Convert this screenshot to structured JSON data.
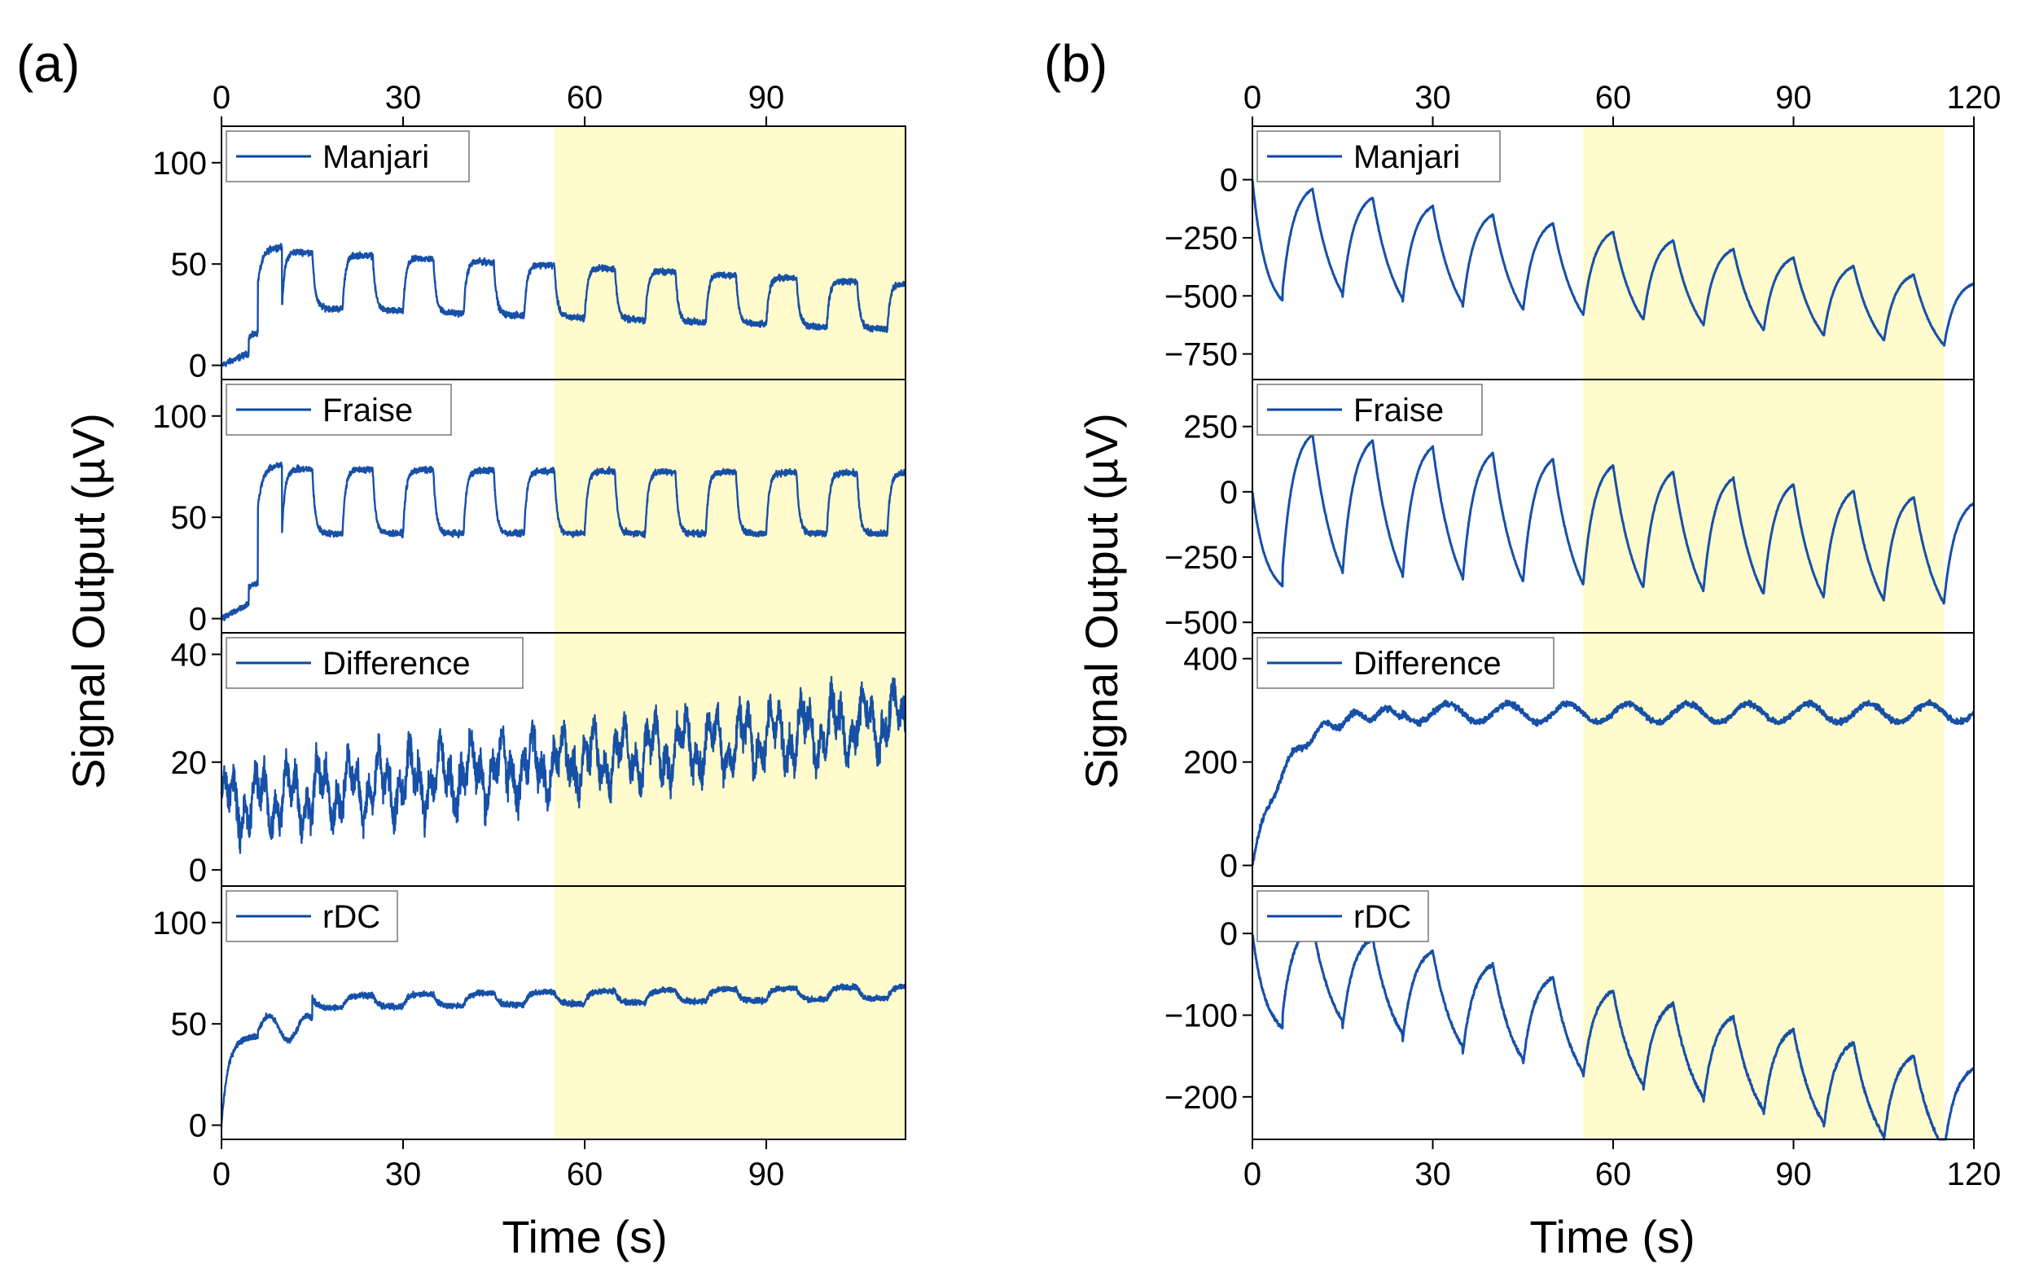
{
  "figure_meta": {
    "line_color": "#0a47a3",
    "shade_color": "#fffbcc"
  },
  "chart_data": [
    {
      "type": "line",
      "panel_label": "(a)",
      "xlabel": "Time (s)",
      "ylabel": "Signal Output (µV)",
      "xlim": [
        0,
        113
      ],
      "xticks": [
        0,
        30,
        60,
        90
      ],
      "top_axis_ticks": [
        0,
        30,
        60,
        90
      ],
      "shaded_region": [
        55,
        113
      ],
      "subplots": [
        {
          "name": "Manjari",
          "ylim": [
            -7,
            118
          ],
          "yticks": [
            0,
            50,
            100
          ],
          "model": {
            "kind": "step",
            "noise": 2.2,
            "base": 30,
            "amp": 28,
            "fall": -0.11,
            "amp_fall": -0.05,
            "onset": 6,
            "onset_from": 8
          }
        },
        {
          "name": "Fraise",
          "ylim": [
            -7,
            118
          ],
          "yticks": [
            0,
            50,
            100
          ],
          "model": {
            "kind": "step",
            "noise": 2.2,
            "base": 42,
            "amp": 32,
            "fall": 0.0,
            "amp_fall": -0.02,
            "onset": 6,
            "onset_from": 10
          }
        },
        {
          "name": "Difference",
          "ylim": [
            -3,
            44
          ],
          "yticks": [
            0,
            20,
            40
          ],
          "model": {
            "kind": "diff",
            "noise": 4.5,
            "base": 12,
            "amp": 4,
            "fall": 0.14,
            "amp_fall": 0
          }
        },
        {
          "name": "rDC",
          "ylim": [
            -7,
            118
          ],
          "yticks": [
            0,
            50,
            100
          ],
          "model": {
            "kind": "rdc",
            "noise": 2.0,
            "base": 57,
            "amp": 6,
            "fall": 0.05,
            "amp_fall": -0.02
          }
        }
      ]
    },
    {
      "type": "line",
      "panel_label": "(b)",
      "xlabel": "Time (s)",
      "ylabel": "Signal Output (µV)",
      "xlim": [
        0,
        120
      ],
      "xticks": [
        0,
        30,
        60,
        90,
        120
      ],
      "top_axis_ticks": [
        0,
        30,
        60,
        90,
        120
      ],
      "shaded_region": [
        55,
        115
      ],
      "subplots": [
        {
          "name": "Manjari",
          "ylim": [
            -860,
            230
          ],
          "yticks": [
            0,
            -250,
            -500,
            -750
          ],
          "model": {
            "kind": "saw",
            "noise": 4,
            "lead": [
              0,
              -520
            ],
            "hi0": -40,
            "hi_slope": -3.7,
            "lo0": -480,
            "lo_slope": -2.2,
            "tau": 4
          }
        },
        {
          "name": "Fraise",
          "ylim": [
            -540,
            430
          ],
          "yticks": [
            250,
            0,
            -250,
            -500
          ],
          "model": {
            "kind": "saw",
            "noise": 4,
            "lead": [
              0,
              -360
            ],
            "hi0": 220,
            "hi_slope": -2.4,
            "lo0": -300,
            "lo_slope": -1.2,
            "tau": 4
          }
        },
        {
          "name": "Difference",
          "ylim": [
            -40,
            450
          ],
          "yticks": [
            0,
            200,
            400
          ],
          "model": {
            "kind": "diffB",
            "noise": 4,
            "base": 315,
            "amp": 18
          }
        },
        {
          "name": "rDC",
          "ylim": [
            -252,
            58
          ],
          "yticks": [
            0,
            -100,
            -200
          ],
          "model": {
            "kind": "saw",
            "noise": 3,
            "lead": [
              0,
              -115
            ],
            "hi0": 10,
            "hi_slope": -1.6,
            "lo0": -100,
            "lo_slope": -1.55,
            "tau": 4
          }
        }
      ]
    }
  ]
}
